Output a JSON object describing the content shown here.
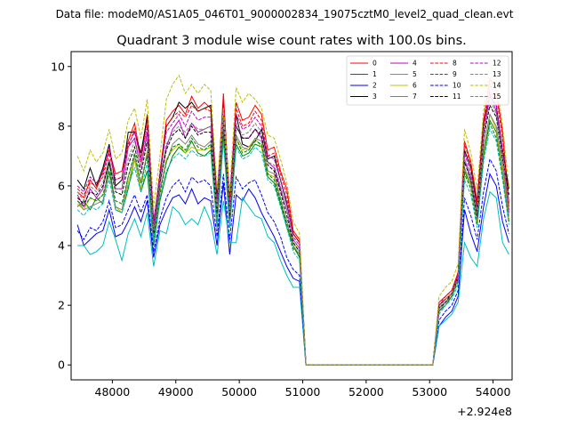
{
  "chart_data": {
    "type": "line",
    "suptitle": "Data file: modeM0/AS1A05_046T01_9000002834_19075cztM0_level2_quad_clean.evt",
    "title": "Quadrant 3 module wise count rates with 100.0s bins.",
    "xlabel": "",
    "ylabel": "",
    "x_offset_label": "+2.924e8",
    "xlim": [
      47350,
      54300
    ],
    "ylim": [
      -0.5,
      10.5
    ],
    "xticks": [
      48000,
      49000,
      50000,
      51000,
      52000,
      53000,
      54000
    ],
    "xtick_labels": [
      "48000",
      "49000",
      "50000",
      "51000",
      "52000",
      "53000",
      "54000"
    ],
    "yticks": [
      0,
      2,
      4,
      6,
      8,
      10
    ],
    "ytick_labels": [
      "0",
      "2",
      "4",
      "6",
      "8",
      "10"
    ],
    "grid": false,
    "legend_position": "top-right",
    "x": [
      47450,
      47550,
      47650,
      47750,
      47850,
      47950,
      48050,
      48150,
      48250,
      48350,
      48450,
      48550,
      48650,
      48750,
      48850,
      48950,
      49050,
      49150,
      49250,
      49350,
      49450,
      49550,
      49650,
      49750,
      49850,
      49950,
      50050,
      50150,
      50250,
      50350,
      50450,
      50550,
      50650,
      50750,
      50850,
      50950,
      51050,
      51150,
      51250,
      51350,
      51450,
      51550,
      51650,
      51750,
      51850,
      51950,
      52050,
      52150,
      52250,
      52350,
      52450,
      52550,
      52650,
      52750,
      52850,
      52950,
      53050,
      53150,
      53250,
      53350,
      53450,
      53550,
      53650,
      53750,
      53850,
      53950,
      54050,
      54150,
      54250
    ],
    "series": [
      {
        "name": "0",
        "color": "#ff0000",
        "dash": false,
        "values": [
          5.8,
          5.6,
          6.2,
          5.9,
          6.5,
          7.2,
          6.4,
          6.5,
          7.5,
          8.1,
          6.9,
          8.4,
          4.6,
          6.4,
          8.2,
          8.5,
          8.7,
          8.4,
          9.0,
          8.6,
          8.8,
          8.6,
          5.5,
          9.1,
          5.4,
          8.8,
          8.2,
          8.3,
          8.7,
          8.4,
          7.2,
          7.3,
          6.5,
          5.9,
          4.5,
          4.2,
          0,
          0,
          0,
          0,
          0,
          0,
          0,
          0,
          0,
          0,
          0,
          0,
          0,
          0,
          0,
          0,
          0,
          0,
          0,
          0,
          0,
          2.1,
          2.3,
          2.5,
          3.1,
          7.5,
          6.8,
          5.5,
          8.2,
          9.6,
          9.2,
          7.8,
          5.4
        ]
      },
      {
        "name": "1",
        "color": "#008000",
        "dash": false,
        "values": [
          5.3,
          5.5,
          5.2,
          5.6,
          5.4,
          6.8,
          5.2,
          5.1,
          5.9,
          6.9,
          5.8,
          6.5,
          4.0,
          5.5,
          6.4,
          7.0,
          7.3,
          7.1,
          7.5,
          7.1,
          7.0,
          7.2,
          4.6,
          7.6,
          4.6,
          7.4,
          7.0,
          7.1,
          7.4,
          7.3,
          6.3,
          6.1,
          5.4,
          4.6,
          4.0,
          3.6,
          0,
          0,
          0,
          0,
          0,
          0,
          0,
          0,
          0,
          0,
          0,
          0,
          0,
          0,
          0,
          0,
          0,
          0,
          0,
          0,
          0,
          1.8,
          2.0,
          2.3,
          2.9,
          6.5,
          6.0,
          4.8,
          7.0,
          8.2,
          7.8,
          6.4,
          4.8
        ]
      },
      {
        "name": "2",
        "color": "#0000ff",
        "dash": false,
        "values": [
          4.7,
          4.0,
          4.2,
          4.4,
          4.5,
          5.2,
          4.3,
          4.4,
          4.8,
          5.3,
          4.8,
          5.5,
          3.6,
          4.7,
          5.2,
          5.6,
          5.7,
          5.4,
          5.9,
          5.4,
          5.6,
          5.5,
          4.0,
          6.1,
          3.7,
          5.7,
          5.5,
          5.9,
          5.6,
          5.1,
          4.7,
          4.3,
          3.8,
          3.3,
          2.9,
          2.8,
          0,
          0,
          0,
          0,
          0,
          0,
          0,
          0,
          0,
          0,
          0,
          0,
          0,
          0,
          0,
          0,
          0,
          0,
          0,
          0,
          0,
          1.3,
          1.6,
          1.8,
          2.3,
          5.2,
          4.4,
          3.8,
          5.3,
          6.4,
          6.0,
          4.8,
          4.1
        ]
      },
      {
        "name": "3",
        "color": "#000000",
        "dash": false,
        "values": [
          6.2,
          5.9,
          6.6,
          6.0,
          6.6,
          7.4,
          6.0,
          6.2,
          7.8,
          7.8,
          7.1,
          8.3,
          4.8,
          6.3,
          8.0,
          8.3,
          8.8,
          8.6,
          8.8,
          8.5,
          8.6,
          8.7,
          5.6,
          8.8,
          5.6,
          8.4,
          7.4,
          7.3,
          7.5,
          7.9,
          6.9,
          7.0,
          6.2,
          5.4,
          4.4,
          4.1,
          0,
          0,
          0,
          0,
          0,
          0,
          0,
          0,
          0,
          0,
          0,
          0,
          0,
          0,
          0,
          0,
          0,
          0,
          0,
          0,
          0,
          2.0,
          2.2,
          2.4,
          3.0,
          7.2,
          6.6,
          5.3,
          8.1,
          9.0,
          8.7,
          7.2,
          5.9
        ]
      },
      {
        "name": "4",
        "color": "#bf00bf",
        "dash": false,
        "values": [
          5.7,
          5.3,
          5.9,
          5.6,
          5.9,
          6.9,
          5.9,
          5.9,
          7.3,
          7.6,
          6.6,
          7.8,
          4.5,
          6.1,
          7.3,
          7.9,
          8.2,
          7.6,
          8.1,
          7.8,
          7.9,
          8.0,
          5.2,
          8.4,
          5.1,
          8.0,
          7.6,
          7.6,
          7.9,
          7.6,
          6.8,
          6.6,
          5.9,
          5.2,
          4.2,
          3.9,
          0,
          0,
          0,
          0,
          0,
          0,
          0,
          0,
          0,
          0,
          0,
          0,
          0,
          0,
          0,
          0,
          0,
          0,
          0,
          0,
          0,
          1.9,
          2.1,
          2.3,
          2.9,
          6.9,
          6.2,
          5.0,
          7.6,
          9.1,
          8.5,
          7.0,
          5.1
        ]
      },
      {
        "name": "5",
        "color": "#00bfbf",
        "dash": false,
        "values": [
          4.0,
          4.0,
          3.7,
          3.8,
          4.0,
          4.8,
          4.2,
          3.5,
          4.4,
          4.9,
          4.3,
          5.1,
          3.3,
          4.5,
          4.4,
          5.3,
          5.1,
          4.7,
          4.9,
          4.7,
          5.3,
          4.8,
          3.7,
          5.5,
          4.1,
          4.1,
          5.6,
          5.3,
          5.0,
          4.9,
          4.3,
          4.1,
          3.5,
          3.0,
          2.6,
          2.6,
          0,
          0,
          0,
          0,
          0,
          0,
          0,
          0,
          0,
          0,
          0,
          0,
          0,
          0,
          0,
          0,
          0,
          0,
          0,
          0,
          0,
          1.3,
          1.5,
          1.7,
          2.1,
          4.1,
          3.6,
          3.3,
          4.9,
          5.8,
          5.6,
          4.1,
          3.7
        ]
      },
      {
        "name": "6",
        "color": "#bfbf00",
        "dash": false,
        "values": [
          5.4,
          5.2,
          5.6,
          5.5,
          5.7,
          6.4,
          5.3,
          5.1,
          6.1,
          6.9,
          5.9,
          7.2,
          4.3,
          5.8,
          6.9,
          7.2,
          7.4,
          7.1,
          7.3,
          7.2,
          7.2,
          7.3,
          4.9,
          7.9,
          4.9,
          7.6,
          7.2,
          7.3,
          7.6,
          7.3,
          6.4,
          6.3,
          5.6,
          4.8,
          4.1,
          3.8,
          0,
          0,
          0,
          0,
          0,
          0,
          0,
          0,
          0,
          0,
          0,
          0,
          0,
          0,
          0,
          0,
          0,
          0,
          0,
          0,
          0,
          1.9,
          2.1,
          2.4,
          2.9,
          6.6,
          6.0,
          4.8,
          7.2,
          8.4,
          7.9,
          6.5,
          4.9
        ]
      },
      {
        "name": "7",
        "color": "#808080",
        "dash": false,
        "values": [
          5.5,
          5.2,
          5.3,
          5.4,
          5.5,
          6.4,
          5.3,
          5.2,
          6.3,
          7.0,
          6.1,
          7.1,
          4.2,
          5.9,
          6.8,
          7.4,
          7.6,
          7.4,
          7.7,
          7.4,
          7.3,
          7.5,
          4.8,
          7.9,
          4.7,
          7.7,
          7.3,
          7.2,
          7.6,
          7.5,
          6.5,
          6.4,
          5.6,
          4.8,
          4.0,
          3.7,
          0,
          0,
          0,
          0,
          0,
          0,
          0,
          0,
          0,
          0,
          0,
          0,
          0,
          0,
          0,
          0,
          0,
          0,
          0,
          0,
          0,
          1.8,
          2.1,
          2.3,
          2.9,
          6.6,
          6.1,
          4.9,
          7.3,
          8.4,
          8.0,
          6.7,
          5.0
        ]
      },
      {
        "name": "8",
        "color": "#ff0000",
        "dash": true,
        "values": [
          5.9,
          5.7,
          6.1,
          6.0,
          6.3,
          7.1,
          6.2,
          6.3,
          7.3,
          7.9,
          6.8,
          8.2,
          4.7,
          6.5,
          8.0,
          8.3,
          8.5,
          8.3,
          8.7,
          8.5,
          8.6,
          8.5,
          5.4,
          8.9,
          5.5,
          8.6,
          8.0,
          8.1,
          8.5,
          8.2,
          7.0,
          7.1,
          6.4,
          5.7,
          4.4,
          4.1,
          0,
          0,
          0,
          0,
          0,
          0,
          0,
          0,
          0,
          0,
          0,
          0,
          0,
          0,
          0,
          0,
          0,
          0,
          0,
          0,
          0,
          2.0,
          2.3,
          2.5,
          3.1,
          7.4,
          6.7,
          5.4,
          8.0,
          9.4,
          9.0,
          7.6,
          5.3
        ]
      },
      {
        "name": "9",
        "color": "#008000",
        "dash": true,
        "values": [
          5.5,
          5.3,
          5.6,
          5.5,
          5.7,
          6.5,
          5.5,
          5.4,
          6.3,
          7.1,
          6.1,
          7.0,
          4.2,
          5.7,
          6.8,
          7.3,
          7.4,
          7.2,
          7.6,
          7.3,
          7.2,
          7.4,
          4.8,
          7.8,
          4.8,
          7.6,
          7.1,
          7.2,
          7.5,
          7.4,
          6.4,
          6.2,
          5.5,
          4.7,
          3.9,
          3.7,
          0,
          0,
          0,
          0,
          0,
          0,
          0,
          0,
          0,
          0,
          0,
          0,
          0,
          0,
          0,
          0,
          0,
          0,
          0,
          0,
          0,
          1.8,
          2.0,
          2.3,
          2.8,
          6.4,
          5.9,
          4.7,
          7.0,
          8.1,
          7.6,
          6.3,
          4.8
        ]
      },
      {
        "name": "10",
        "color": "#0000ff",
        "dash": true,
        "values": [
          4.5,
          4.2,
          4.6,
          4.5,
          4.8,
          5.5,
          4.6,
          4.7,
          5.2,
          5.7,
          5.1,
          5.7,
          3.8,
          4.9,
          5.6,
          6.0,
          6.2,
          5.8,
          6.3,
          6.1,
          6.2,
          6.0,
          4.3,
          6.4,
          4.2,
          6.3,
          5.9,
          6.1,
          6.2,
          5.7,
          5.1,
          4.8,
          4.3,
          3.6,
          3.2,
          3.0,
          0,
          0,
          0,
          0,
          0,
          0,
          0,
          0,
          0,
          0,
          0,
          0,
          0,
          0,
          0,
          0,
          0,
          0,
          0,
          0,
          0,
          1.5,
          1.8,
          2.0,
          2.5,
          5.6,
          5.0,
          4.2,
          5.8,
          6.9,
          6.5,
          5.3,
          4.4
        ]
      },
      {
        "name": "11",
        "color": "#000000",
        "dash": true,
        "values": [
          5.6,
          5.4,
          5.8,
          5.7,
          6.0,
          6.8,
          5.8,
          5.7,
          6.7,
          7.3,
          6.4,
          7.5,
          4.4,
          6.1,
          7.2,
          7.7,
          7.9,
          7.6,
          8.0,
          7.7,
          7.8,
          7.8,
          5.1,
          8.2,
          5.0,
          8.0,
          7.6,
          7.6,
          7.9,
          7.7,
          6.7,
          6.5,
          5.8,
          5.0,
          4.1,
          3.8,
          0,
          0,
          0,
          0,
          0,
          0,
          0,
          0,
          0,
          0,
          0,
          0,
          0,
          0,
          0,
          0,
          0,
          0,
          0,
          0,
          0,
          1.9,
          2.1,
          2.4,
          2.9,
          6.8,
          6.2,
          5.0,
          7.6,
          8.7,
          8.3,
          6.9,
          5.7
        ]
      },
      {
        "name": "12",
        "color": "#bf00bf",
        "dash": true,
        "values": [
          6.0,
          5.8,
          6.3,
          6.1,
          6.4,
          7.3,
          6.2,
          6.3,
          7.4,
          7.8,
          6.9,
          8.0,
          4.7,
          6.4,
          7.8,
          8.1,
          8.4,
          8.0,
          8.5,
          8.2,
          8.3,
          8.3,
          5.4,
          8.7,
          5.3,
          8.4,
          7.9,
          8.0,
          8.3,
          8.0,
          7.0,
          6.9,
          6.2,
          5.5,
          4.3,
          4.0,
          0,
          0,
          0,
          0,
          0,
          0,
          0,
          0,
          0,
          0,
          0,
          0,
          0,
          0,
          0,
          0,
          0,
          0,
          0,
          0,
          0,
          2.0,
          2.2,
          2.4,
          3.0,
          7.1,
          6.4,
          5.2,
          7.8,
          9.2,
          8.7,
          7.2,
          5.2
        ]
      },
      {
        "name": "13",
        "color": "#00bfbf",
        "dash": true,
        "values": [
          5.2,
          5.0,
          5.3,
          5.2,
          5.4,
          6.2,
          5.2,
          5.1,
          6.0,
          6.6,
          5.8,
          6.8,
          4.1,
          5.6,
          6.5,
          6.9,
          7.1,
          6.9,
          7.2,
          7.0,
          7.0,
          7.1,
          4.7,
          7.5,
          4.6,
          7.3,
          6.9,
          7.0,
          7.3,
          7.1,
          6.2,
          6.0,
          5.3,
          4.6,
          3.8,
          3.5,
          0,
          0,
          0,
          0,
          0,
          0,
          0,
          0,
          0,
          0,
          0,
          0,
          0,
          0,
          0,
          0,
          0,
          0,
          0,
          0,
          0,
          1.7,
          2.0,
          2.2,
          2.7,
          6.2,
          5.7,
          4.6,
          6.8,
          7.9,
          7.5,
          6.2,
          4.7
        ]
      },
      {
        "name": "14",
        "color": "#bfbf00",
        "dash": true,
        "values": [
          7.0,
          6.5,
          7.2,
          6.8,
          7.1,
          7.9,
          6.9,
          7.1,
          8.2,
          8.6,
          7.6,
          8.9,
          5.3,
          7.0,
          8.9,
          9.4,
          9.7,
          9.1,
          9.4,
          9.1,
          9.4,
          9.2,
          5.9,
          8.6,
          5.8,
          9.3,
          8.8,
          9.1,
          8.9,
          8.6,
          7.7,
          7.6,
          6.9,
          6.1,
          4.8,
          4.4,
          0,
          0,
          0,
          0,
          0,
          0,
          0,
          0,
          0,
          0,
          0,
          0,
          0,
          0,
          0,
          0,
          0,
          0,
          0,
          0,
          0,
          2.3,
          2.6,
          2.8,
          3.4,
          7.9,
          7.1,
          5.9,
          8.5,
          10.1,
          9.6,
          8.0,
          6.0
        ]
      },
      {
        "name": "15",
        "color": "#808080",
        "dash": true,
        "values": [
          5.8,
          5.5,
          6.0,
          5.8,
          6.1,
          6.9,
          5.9,
          5.9,
          6.9,
          7.5,
          6.6,
          7.6,
          4.5,
          6.2,
          7.4,
          7.8,
          8.0,
          7.8,
          8.1,
          7.9,
          7.9,
          8.0,
          5.2,
          8.3,
          5.1,
          8.1,
          7.7,
          7.8,
          8.1,
          7.8,
          6.8,
          6.7,
          6.0,
          5.2,
          4.2,
          3.9,
          0,
          0,
          0,
          0,
          0,
          0,
          0,
          0,
          0,
          0,
          0,
          0,
          0,
          0,
          0,
          0,
          0,
          0,
          0,
          0,
          0,
          1.9,
          2.2,
          2.4,
          2.9,
          6.9,
          6.3,
          5.1,
          7.7,
          8.9,
          8.4,
          7.0,
          5.3
        ]
      }
    ]
  }
}
